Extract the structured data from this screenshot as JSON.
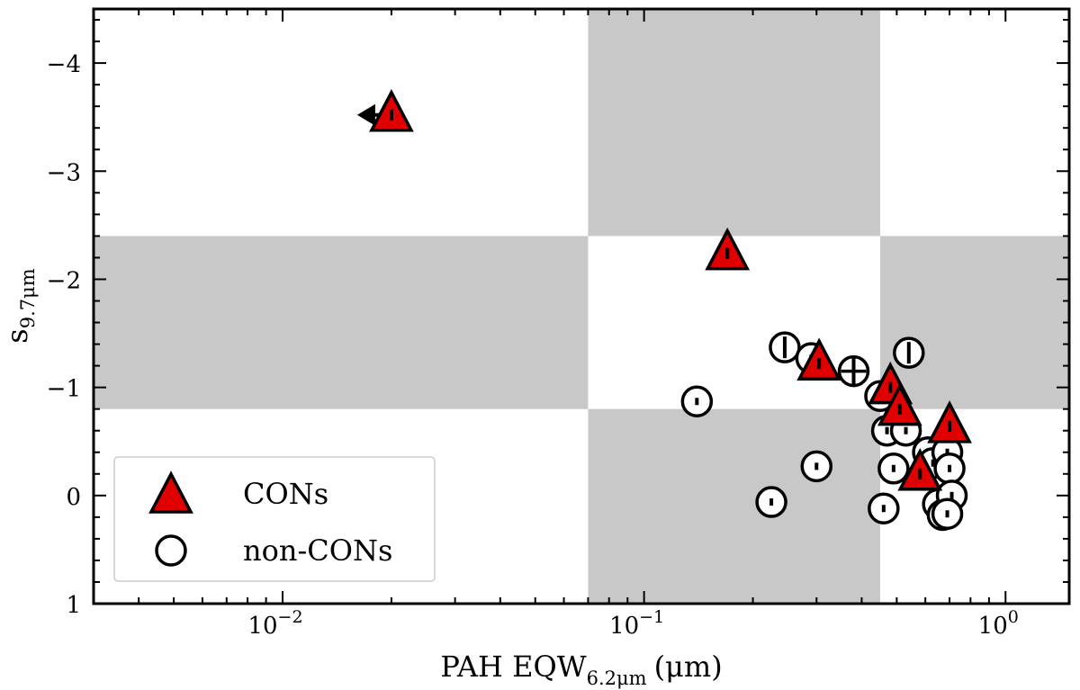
{
  "chart_data": {
    "type": "scatter",
    "title": "",
    "xlabel": {
      "main": "PAH EQW",
      "sub": "6.2μm",
      "unit": "(μm)"
    },
    "ylabel": {
      "main": "s",
      "sub": "9.7μm"
    },
    "x_scale": "log",
    "xlim": [
      0.003,
      1.5
    ],
    "ylim": [
      1,
      -4.5
    ],
    "y_inverted": true,
    "x_tick_labels": [
      {
        "value": 0.01,
        "base": "10",
        "exp": "−2"
      },
      {
        "value": 0.1,
        "base": "10",
        "exp": "−1"
      },
      {
        "value": 1,
        "base": "10",
        "exp": "0"
      }
    ],
    "y_ticks": [
      {
        "value": -4,
        "label": "−4"
      },
      {
        "value": -3,
        "label": "−3"
      },
      {
        "value": -2,
        "label": "−2"
      },
      {
        "value": -1,
        "label": "−1"
      },
      {
        "value": 0,
        "label": "0"
      },
      {
        "value": 1,
        "label": "1"
      }
    ],
    "shaded_regions": [
      {
        "x": [
          0.07,
          0.45
        ],
        "y": [
          -4.5,
          -2.4
        ]
      },
      {
        "x": [
          0.003,
          0.07
        ],
        "y": [
          -2.4,
          -0.8
        ]
      },
      {
        "x": [
          0.45,
          1.5
        ],
        "y": [
          -2.4,
          -0.8
        ]
      },
      {
        "x": [
          0.07,
          0.45
        ],
        "y": [
          -0.8,
          1
        ]
      }
    ],
    "shade_color": "#c8c8c8",
    "grid": false,
    "legend_position": "bottom-left",
    "series": [
      {
        "name": "CONs",
        "marker": "triangle",
        "color": "#e00000",
        "points": [
          {
            "x": 0.02,
            "y": -3.52,
            "upper_limit_x": true
          },
          {
            "x": 0.17,
            "y": -2.24
          },
          {
            "x": 0.305,
            "y": -1.22
          },
          {
            "x": 0.48,
            "y": -1.0
          },
          {
            "x": 0.51,
            "y": -0.8
          },
          {
            "x": 0.7,
            "y": -0.64
          },
          {
            "x": 0.58,
            "y": -0.2
          }
        ]
      },
      {
        "name": "non-CONs",
        "marker": "circle",
        "color": "#ffffff",
        "points": [
          {
            "x": 0.14,
            "y": -0.87
          },
          {
            "x": 0.225,
            "y": 0.06
          },
          {
            "x": 0.245,
            "y": -1.37,
            "err": 0.1
          },
          {
            "x": 0.29,
            "y": -1.27
          },
          {
            "x": 0.3,
            "y": -0.27
          },
          {
            "x": 0.38,
            "y": -1.15,
            "err": 0.12,
            "xerr": true
          },
          {
            "x": 0.45,
            "y": -0.92
          },
          {
            "x": 0.47,
            "y": -0.6
          },
          {
            "x": 0.49,
            "y": -0.25
          },
          {
            "x": 0.46,
            "y": 0.12
          },
          {
            "x": 0.53,
            "y": -0.6
          },
          {
            "x": 0.54,
            "y": -1.32,
            "err": 0.1
          },
          {
            "x": 0.61,
            "y": -0.4
          },
          {
            "x": 0.63,
            "y": -0.3
          },
          {
            "x": 0.65,
            "y": 0.08
          },
          {
            "x": 0.67,
            "y": 0.18
          },
          {
            "x": 0.69,
            "y": -0.4
          },
          {
            "x": 0.7,
            "y": -0.25
          },
          {
            "x": 0.71,
            "y": 0.0
          },
          {
            "x": 0.69,
            "y": 0.17
          }
        ]
      }
    ]
  }
}
